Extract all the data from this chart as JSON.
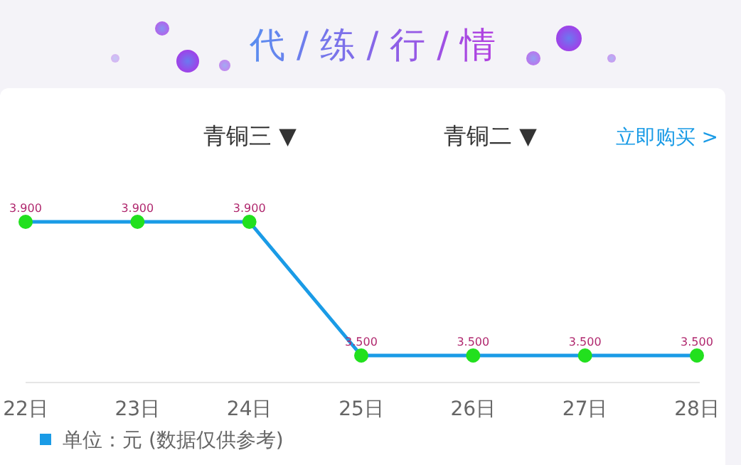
{
  "chart_data": {
    "type": "line",
    "title": "代 / 练 / 行 / 情",
    "categories": [
      "22日",
      "23日",
      "24日",
      "25日",
      "26日",
      "27日",
      "28日"
    ],
    "series": [
      {
        "name": "单位：元 (数据仅供参考)",
        "color": "#1a9be6",
        "values": [
          3.9,
          3.9,
          3.9,
          3.5,
          3.5,
          3.5,
          3.5
        ],
        "value_labels": [
          "3.900",
          "3.900",
          "3.900",
          "3.500",
          "3.500",
          "3.500",
          "3.500"
        ]
      }
    ],
    "marker": "circle",
    "legend": "bottom left",
    "annotations": [
      "青铜三 ▼",
      "青铜二 ▼",
      "立即购买 >"
    ]
  }
}
